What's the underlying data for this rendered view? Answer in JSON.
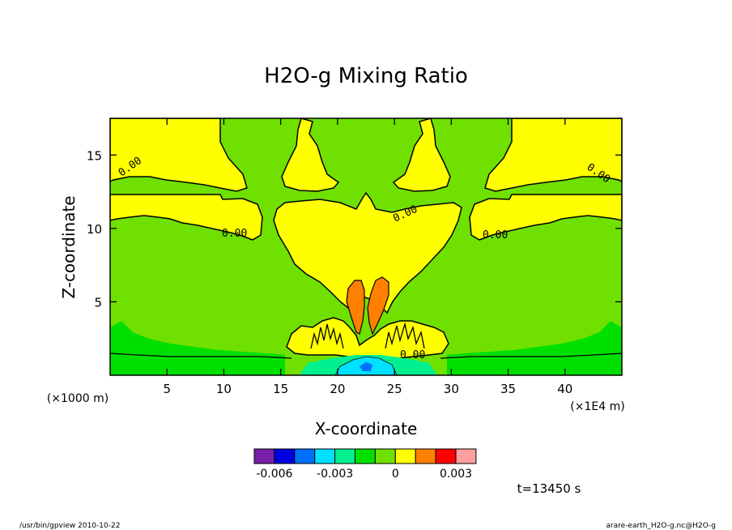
{
  "chart_data": {
    "type": "heatmap",
    "title": "H2O-g Mixing Ratio",
    "xlabel": "X-coordinate",
    "ylabel": "Z-coordinate",
    "x_unit": "(×1E4 m)",
    "y_unit": "(×1000 m)",
    "xlim": [
      0,
      45
    ],
    "ylim": [
      0,
      17.5
    ],
    "x_ticks": [
      5,
      10,
      15,
      20,
      25,
      30,
      35,
      40
    ],
    "y_ticks": [
      5,
      10,
      15
    ],
    "contour_labels": [
      "0.00"
    ],
    "colorbar": {
      "colors": [
        "#7a1fa8",
        "#0000e0",
        "#0070ff",
        "#00e0ff",
        "#00f090",
        "#00e000",
        "#70e000",
        "#ffff00",
        "#ff8000",
        "#ff0000",
        "#ff9fa0"
      ],
      "tick_labels": [
        "-0.006",
        "-0.003",
        "0",
        "0.003"
      ]
    },
    "grid": false
  },
  "annotation": {
    "time": "t=13450 s"
  },
  "footer": {
    "left": "/usr/bin/gpview  2010-10-22",
    "right": "arare-earth_H2O-g.nc@H2O-g"
  }
}
